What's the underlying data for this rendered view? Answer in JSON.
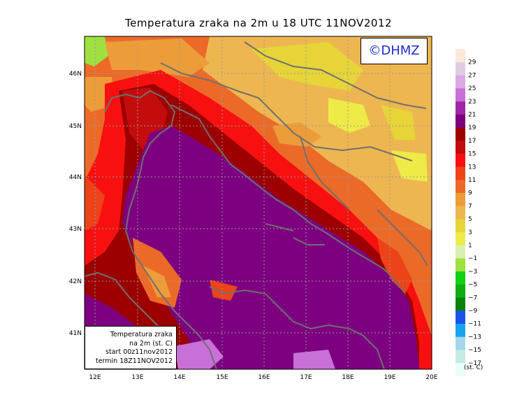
{
  "title": "Temperatura zraka na 2m u 18 UTC 11NOV2012",
  "logo_text": "©DHMZ",
  "info_box": {
    "line1": "Temperatura zraka",
    "line2": "na 2m (st. C)",
    "line3": "start 00z11nov2012",
    "line4": "termin 18Z11NOV2012"
  },
  "lat_labels": [
    "46N",
    "45N",
    "44N",
    "43N",
    "42N",
    "41N"
  ],
  "lon_labels": [
    "12E",
    "13E",
    "14E",
    "15E",
    "16E",
    "17E",
    "18E",
    "19E",
    "20E"
  ],
  "colorbar": {
    "unit": "(st. C)",
    "colors": [
      "#e8fff8",
      "#c4ece4",
      "#a4d8e8",
      "#18a4ec",
      "#1c52ec",
      "#088208",
      "#10ac10",
      "#12d012",
      "#9ee040",
      "#d8f0b0",
      "#eeea48",
      "#e6d438",
      "#eeb650",
      "#ec9c38",
      "#ec6a28",
      "#ec4418",
      "#f81010",
      "#c40c0c",
      "#9c0000",
      "#7c0080",
      "#a028a8",
      "#c870d8",
      "#dca8e4",
      "#e0cce0",
      "#fde8dc"
    ],
    "labels": [
      "29",
      "27",
      "25",
      "23",
      "21",
      "19",
      "17",
      "15",
      "13",
      "11",
      "9",
      "7",
      "5",
      "3",
      "1",
      "−1",
      "−3",
      "−5",
      "−7",
      "−9",
      "−11",
      "−13",
      "−15",
      "−17"
    ]
  },
  "icons": {
    "logo": "copyright-dhmz-logo"
  }
}
